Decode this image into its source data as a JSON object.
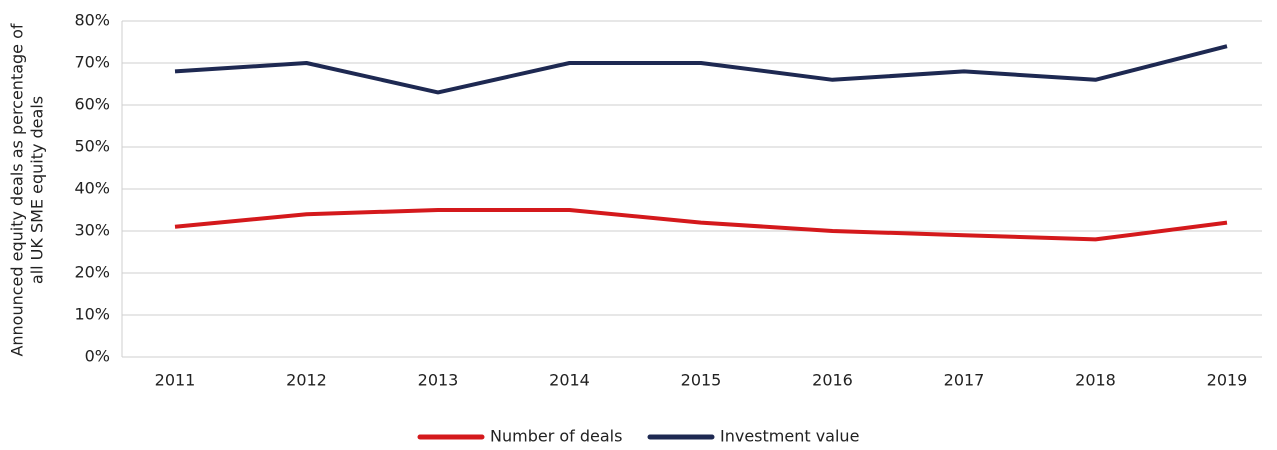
{
  "chart_data": {
    "type": "line",
    "y_label": [
      "Announced equity deals as percentage of",
      "all UK SME equity deals"
    ],
    "categories": [
      "2011",
      "2012",
      "2013",
      "2014",
      "2015",
      "2016",
      "2017",
      "2018",
      "2019"
    ],
    "series": [
      {
        "name": "Number of deals",
        "color": "#d4191c",
        "values": [
          31,
          34,
          35,
          35,
          32,
          30,
          29,
          28,
          32
        ]
      },
      {
        "name": "Investment value",
        "color": "#1e2952",
        "values": [
          68,
          70,
          63,
          70,
          70,
          66,
          68,
          66,
          74
        ]
      }
    ],
    "ylim": [
      0,
      80
    ],
    "yticks": [
      {
        "value": 0,
        "label": "0%"
      },
      {
        "value": 10,
        "label": "10%"
      },
      {
        "value": 20,
        "label": "20%"
      },
      {
        "value": 30,
        "label": "30%"
      },
      {
        "value": 40,
        "label": "40%"
      },
      {
        "value": 50,
        "label": "50%"
      },
      {
        "value": 60,
        "label": "60%"
      },
      {
        "value": 70,
        "label": "70%"
      },
      {
        "value": 80,
        "label": "80%"
      }
    ],
    "grid": true,
    "legend": "bottom"
  }
}
